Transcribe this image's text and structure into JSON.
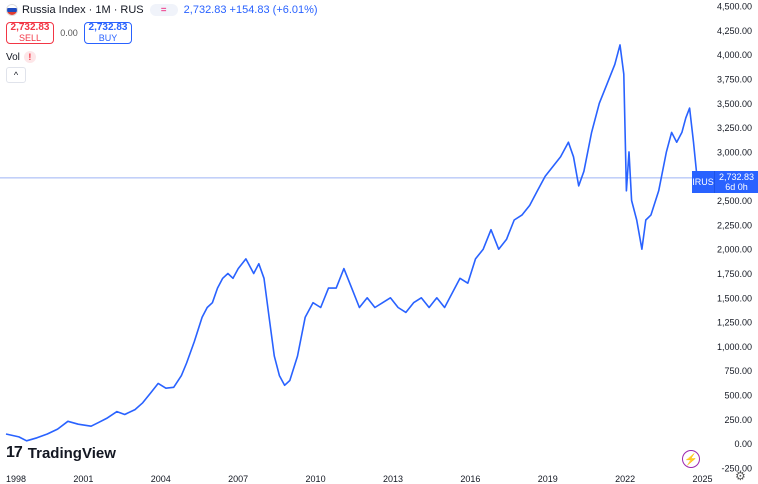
{
  "header": {
    "title": "Russia Index · 1M · RUS",
    "pill_icon": "equals-icon",
    "price_text": "2,732.83 +154.83 (+6.01%)"
  },
  "trade": {
    "sell_value": "2,732.83",
    "sell_label": "SELL",
    "spread": "0.00",
    "buy_value": "2,732.83",
    "buy_label": "BUY"
  },
  "indicators": {
    "vol_label": "Vol",
    "warning_symbol": "!",
    "collapse_symbol": "^"
  },
  "brand": {
    "logo_mark": "17",
    "name": "TradingView"
  },
  "price_tag": {
    "symbol": "IRUS",
    "value": "2,732.83",
    "countdown": "6d 0h"
  },
  "colors": {
    "line": "#2962ff",
    "last_price": "#2962ff",
    "axis_text": "#131722",
    "grid_guide": "#9db4f5"
  },
  "chart_data": {
    "type": "line",
    "title": "Russia Index",
    "interval": "1M",
    "exchange": "RUS",
    "ylim": [
      -250,
      4500
    ],
    "xlim": [
      1998.0,
      2025.6
    ],
    "y_ticks": [
      -250,
      0,
      250,
      500,
      750,
      1000,
      1250,
      1500,
      1750,
      2000,
      2250,
      2500,
      3000,
      3250,
      3500,
      3750,
      4000,
      4250,
      4500
    ],
    "y_tick_labels": [
      "-250.00",
      "0.00",
      "250.00",
      "500.00",
      "750.00",
      "1,000.00",
      "1,250.00",
      "1,500.00",
      "1,750.00",
      "2,000.00",
      "2,250.00",
      "2,500.00",
      "3,000.00",
      "3,250.00",
      "3,500.00",
      "3,750.00",
      "4,000.00",
      "4,250.00",
      "4,500.00"
    ],
    "x_ticks": [
      1998,
      2001,
      2004,
      2007,
      2010,
      2013,
      2016,
      2019,
      2022,
      2025
    ],
    "x_tick_labels": [
      "1998",
      "2001",
      "2004",
      "2007",
      "2010",
      "2013",
      "2016",
      "2019",
      "2022",
      "2025"
    ],
    "last_value": 2732.83,
    "series": [
      {
        "name": "Russia Index",
        "x": [
          1998.0,
          1998.5,
          1998.8,
          1999.2,
          1999.6,
          2000.0,
          2000.4,
          2000.8,
          2001.3,
          2001.6,
          2001.9,
          2002.3,
          2002.6,
          2003.0,
          2003.3,
          2003.6,
          2003.9,
          2004.2,
          2004.5,
          2004.8,
          2005.0,
          2005.3,
          2005.6,
          2005.8,
          2006.0,
          2006.2,
          2006.4,
          2006.6,
          2006.8,
          2007.0,
          2007.3,
          2007.6,
          2007.8,
          2008.0,
          2008.2,
          2008.4,
          2008.6,
          2008.8,
          2009.0,
          2009.3,
          2009.6,
          2009.9,
          2010.2,
          2010.5,
          2010.8,
          2011.1,
          2011.4,
          2011.7,
          2012.0,
          2012.3,
          2012.6,
          2012.9,
          2013.2,
          2013.5,
          2013.8,
          2014.1,
          2014.4,
          2014.7,
          2015.0,
          2015.3,
          2015.6,
          2015.9,
          2016.2,
          2016.5,
          2016.8,
          2017.1,
          2017.4,
          2017.7,
          2018.0,
          2018.3,
          2018.6,
          2018.9,
          2019.2,
          2019.5,
          2019.8,
          2020.0,
          2020.2,
          2020.4,
          2020.7,
          2021.0,
          2021.3,
          2021.6,
          2021.8,
          2021.95,
          2022.05,
          2022.15,
          2022.25,
          2022.45,
          2022.65,
          2022.8,
          2023.0,
          2023.3,
          2023.6,
          2023.8,
          2024.0,
          2024.2,
          2024.35,
          2024.5,
          2024.65,
          2024.8,
          2024.92,
          2025.0
        ],
        "y": [
          100,
          70,
          30,
          60,
          100,
          150,
          230,
          200,
          180,
          220,
          260,
          330,
          300,
          350,
          420,
          520,
          620,
          570,
          580,
          700,
          830,
          1050,
          1300,
          1400,
          1450,
          1600,
          1700,
          1750,
          1700,
          1800,
          1900,
          1750,
          1850,
          1700,
          1300,
          900,
          700,
          600,
          650,
          900,
          1300,
          1450,
          1400,
          1600,
          1600,
          1800,
          1600,
          1400,
          1500,
          1400,
          1450,
          1500,
          1400,
          1350,
          1450,
          1500,
          1400,
          1500,
          1400,
          1550,
          1700,
          1650,
          1900,
          2000,
          2200,
          2000,
          2100,
          2300,
          2350,
          2450,
          2600,
          2750,
          2850,
          2950,
          3100,
          2950,
          2650,
          2800,
          3200,
          3500,
          3700,
          3900,
          4100,
          3800,
          2600,
          3000,
          2500,
          2300,
          2000,
          2300,
          2350,
          2600,
          3000,
          3200,
          3100,
          3200,
          3350,
          3450,
          3100,
          2700,
          2600,
          2732.83
        ]
      }
    ]
  }
}
